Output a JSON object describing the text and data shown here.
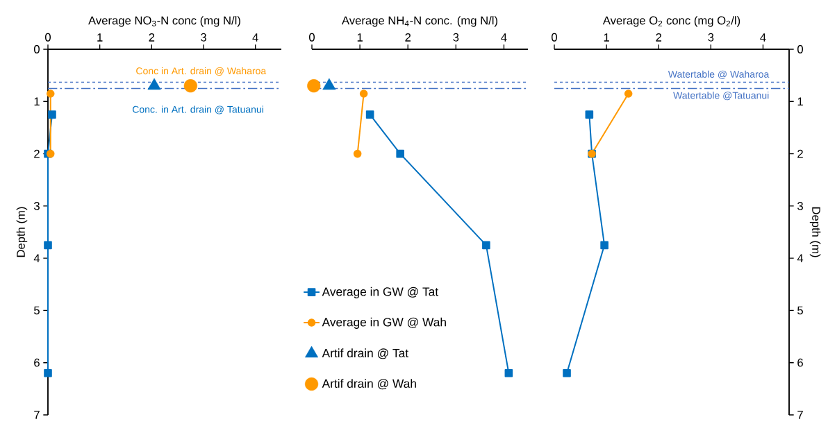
{
  "chart_data": [
    {
      "type": "line",
      "xlabel": "Average NO$_{3}$-N conc (mg N/l)",
      "ylabel": "Depth (m)",
      "xlim": [
        0,
        4.5
      ],
      "xticks": [
        0,
        1,
        2,
        3,
        4
      ],
      "ylim": [
        7,
        0
      ],
      "yticks": [
        0,
        1,
        2,
        3,
        4,
        5,
        6,
        7
      ],
      "series": [
        {
          "color": "#0070c0",
          "marker": "square",
          "line_style": "solid",
          "x": [
            0.08,
            0,
            0,
            0
          ],
          "values": [
            1.25,
            2.0,
            3.75,
            6.2
          ]
        },
        {
          "color": "#ff9900",
          "marker": "circle",
          "line_style": "solid",
          "x": [
            0.05,
            0.05
          ],
          "values": [
            0.85,
            2.0
          ]
        },
        {
          "type": "scatter",
          "color": "#0070c0",
          "marker": "triangle",
          "x": [
            2.05
          ],
          "values": [
            0.7
          ]
        },
        {
          "type": "scatter",
          "color": "#ff9900",
          "marker": "circle",
          "x": [
            2.75
          ],
          "values": [
            0.7
          ]
        }
      ],
      "ref_lines": [
        {
          "axis": "y",
          "value": 0.63,
          "line_style": "dashed",
          "color": "#4472c4"
        },
        {
          "axis": "y",
          "value": 0.75,
          "line_style": "dashdot",
          "color": "#4472c4"
        }
      ],
      "annotations": [
        {
          "text": "Conc in Art. drain @ Waharoa",
          "x": 2.75,
          "y": 0.7
        },
        {
          "text": "Conc. in Art. drain @ Tatuanui",
          "x": 2.05,
          "y": 0.7
        }
      ]
    },
    {
      "type": "line",
      "xlabel": "Average NH$_{4}$-N conc. (mg N/l)",
      "xlim": [
        0,
        4.5
      ],
      "xticks": [
        0,
        1,
        2,
        3,
        4
      ],
      "ylim": [
        7,
        0
      ],
      "tick_labels": "x",
      "legend": "bottom left",
      "series": [
        {
          "name": "Average in GW @ Tat",
          "color": "#0070c0",
          "marker": "square",
          "line_style": "solid",
          "x": [
            1.21,
            1.84,
            3.63,
            4.1
          ],
          "values": [
            1.25,
            2.0,
            3.75,
            6.2
          ]
        },
        {
          "name": "Average in GW @ Wah",
          "color": "#ff9900",
          "marker": "circle",
          "line_style": "solid",
          "x": [
            1.08,
            0.95
          ],
          "values": [
            0.85,
            2.0
          ]
        },
        {
          "name": "Artif drain @ Tat",
          "type": "scatter",
          "color": "#0070c0",
          "marker": "triangle",
          "x": [
            0.36
          ],
          "values": [
            0.7
          ]
        },
        {
          "name": "Artif drain @ Wah",
          "type": "scatter",
          "color": "#ff9900",
          "marker": "circle",
          "x": [
            0.04
          ],
          "values": [
            0.7
          ]
        }
      ],
      "ref_lines": [
        {
          "axis": "y",
          "value": 0.63,
          "line_style": "dashed",
          "color": "#4472c4"
        },
        {
          "axis": "y",
          "value": 0.75,
          "line_style": "dashdot",
          "color": "#4472c4"
        }
      ]
    },
    {
      "type": "line",
      "xlabel": "Average O$_{2}$ conc (mg O$_{2}$/l)",
      "ylabel": "Depth (m)",
      "xlim": [
        0,
        4.5
      ],
      "xticks": [
        0,
        1,
        2,
        3,
        4
      ],
      "ylim": [
        7,
        0
      ],
      "yticks": [
        0,
        1,
        2,
        3,
        4,
        5,
        6,
        7
      ],
      "series": [
        {
          "color": "#0070c0",
          "marker": "square",
          "line_style": "solid",
          "x": [
            0.67,
            0.72,
            0.96,
            0.24
          ],
          "values": [
            1.25,
            2.0,
            3.75,
            6.2
          ]
        },
        {
          "color": "#ff9900",
          "marker": "circle",
          "line_style": "solid",
          "x": [
            1.42,
            0.72
          ],
          "values": [
            0.85,
            2.0
          ]
        }
      ],
      "ref_lines": [
        {
          "axis": "y",
          "value": 0.63,
          "line_style": "dashed",
          "color": "#4472c4",
          "label": "Watertable @ Waharoa"
        },
        {
          "axis": "y",
          "value": 0.75,
          "line_style": "dashdot",
          "color": "#4472c4",
          "label": "Watertable @Tatuanui"
        }
      ]
    }
  ]
}
